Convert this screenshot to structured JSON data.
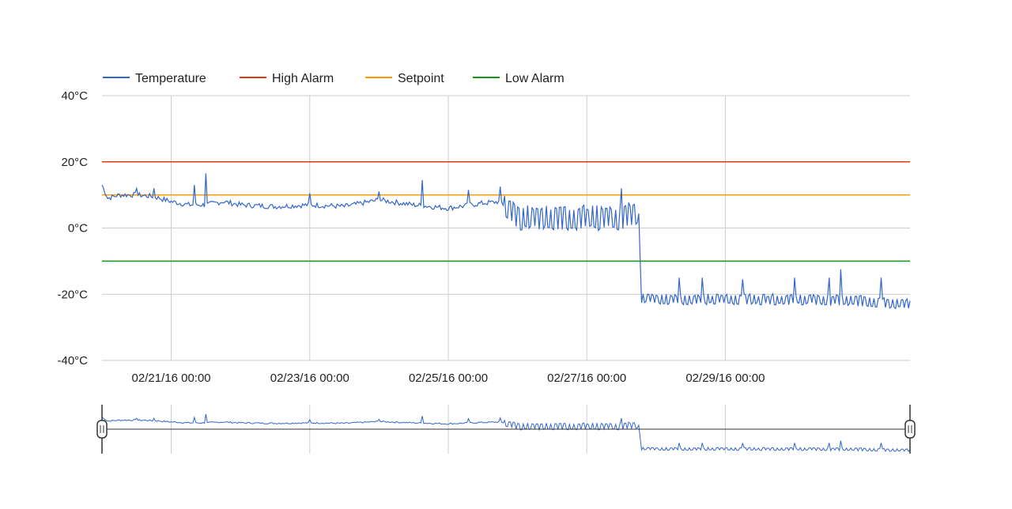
{
  "chart_data": {
    "type": "line",
    "title": "",
    "xlabel": "",
    "ylabel": "",
    "ylim": [
      -40,
      40
    ],
    "xlim": [
      "2016-02-20 00:00",
      "2016-03-02 16:00"
    ],
    "grid": true,
    "legend_position": "top",
    "yticks": [
      {
        "value": 40,
        "label": "40°C"
      },
      {
        "value": 20,
        "label": "20°C"
      },
      {
        "value": 0,
        "label": "0°C"
      },
      {
        "value": -20,
        "label": "-20°C"
      },
      {
        "value": -40,
        "label": "-40°C"
      }
    ],
    "xticks": [
      {
        "value": "2016-02-21 00:00",
        "label": "02/21/16 00:00"
      },
      {
        "value": "2016-02-23 00:00",
        "label": "02/23/16 00:00"
      },
      {
        "value": "2016-02-25 00:00",
        "label": "02/25/16 00:00"
      },
      {
        "value": "2016-02-27 00:00",
        "label": "02/27/16 00:00"
      },
      {
        "value": "2016-02-29 00:00",
        "label": "02/29/16 00:00"
      }
    ],
    "series": [
      {
        "name": "Temperature",
        "color": "#3366cc",
        "points": [
          [
            "2016-02-20 00:00",
            13
          ],
          [
            "2016-02-20 02:00",
            9
          ],
          [
            "2016-02-20 06:00",
            10
          ],
          [
            "2016-02-20 12:00",
            10
          ],
          [
            "2016-02-20 18:00",
            9.5
          ],
          [
            "2016-02-21 00:00",
            8
          ],
          [
            "2016-02-21 06:00",
            7
          ],
          [
            "2016-02-21 12:00",
            7
          ],
          [
            "2016-02-21 18:00",
            8
          ],
          [
            "2016-02-22 00:00",
            7
          ],
          [
            "2016-02-22 12:00",
            6.5
          ],
          [
            "2016-02-23 00:00",
            7
          ],
          [
            "2016-02-23 12:00",
            6.5
          ],
          [
            "2016-02-24 00:00",
            8.5
          ],
          [
            "2016-02-24 12:00",
            7
          ],
          [
            "2016-02-25 00:00",
            6
          ],
          [
            "2016-02-25 12:00",
            7.5
          ],
          [
            "2016-02-25 18:00",
            8
          ],
          [
            "2016-02-26 00:00",
            3
          ],
          [
            "2016-02-26 12:00",
            3
          ],
          [
            "2016-02-27 00:00",
            3
          ],
          [
            "2016-02-27 12:00",
            3
          ],
          [
            "2016-02-27 18:00",
            5
          ],
          [
            "2016-02-27 19:00",
            -21
          ],
          [
            "2016-02-28 00:00",
            -21.5
          ],
          [
            "2016-02-29 00:00",
            -21.5
          ],
          [
            "2016-03-01 00:00",
            -21.5
          ],
          [
            "2016-03-02 00:00",
            -22
          ],
          [
            "2016-03-02 16:00",
            -23
          ]
        ],
        "spikes": [
          [
            "2016-02-20 12:00",
            12
          ],
          [
            "2016-02-20 18:00",
            12
          ],
          [
            "2016-02-21 08:00",
            13
          ],
          [
            "2016-02-21 12:00",
            16.5
          ],
          [
            "2016-02-23 00:00",
            10.5
          ],
          [
            "2016-02-24 00:00",
            11
          ],
          [
            "2016-02-24 15:00",
            14.5
          ],
          [
            "2016-02-25 07:00",
            11.5
          ],
          [
            "2016-02-25 18:00",
            12.5
          ],
          [
            "2016-02-27 12:00",
            12
          ],
          [
            "2016-02-28 08:00",
            -15
          ],
          [
            "2016-02-28 16:00",
            -15
          ],
          [
            "2016-02-29 06:00",
            -15.5
          ],
          [
            "2016-03-01 00:00",
            -15
          ],
          [
            "2016-03-01 12:00",
            -15
          ],
          [
            "2016-03-01 16:00",
            -12.5
          ],
          [
            "2016-03-02 06:00",
            -15
          ]
        ]
      },
      {
        "name": "High Alarm",
        "color": "#dc3912",
        "value": 20
      },
      {
        "name": "Setpoint",
        "color": "#ff9900",
        "value": 10
      },
      {
        "name": "Low Alarm",
        "color": "#109618",
        "value": -10
      }
    ]
  }
}
